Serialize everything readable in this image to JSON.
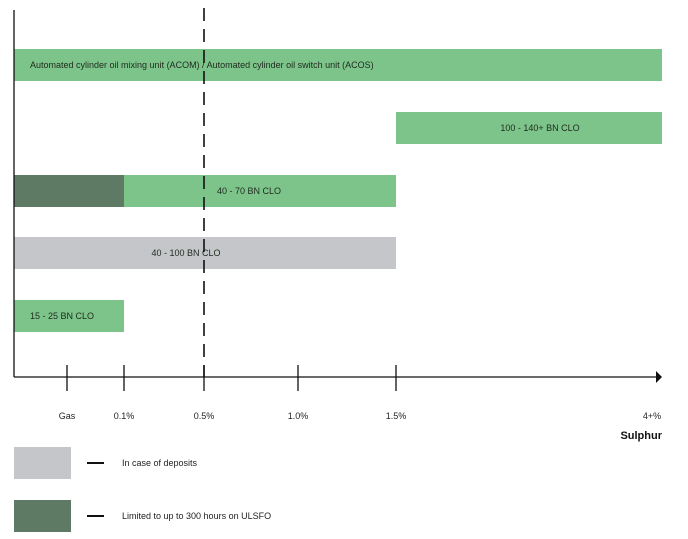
{
  "chart_data": {
    "type": "bar",
    "orientation": "horizontal",
    "x_axis": {
      "title": "Sulphur",
      "ticks": [
        {
          "label": "Gas",
          "value": "Gas"
        },
        {
          "label": "0.1%",
          "value": 0.1
        },
        {
          "label": "0.5%",
          "value": 0.5
        },
        {
          "label": "1.0%",
          "value": 1.0
        },
        {
          "label": "1.5%",
          "value": 1.5
        },
        {
          "label": "4+%",
          "value": 4
        }
      ]
    },
    "reference_line": {
      "value": 0.5,
      "style": "dashed"
    },
    "bars": [
      {
        "label": "Automated cylinder oil mixing unit (ACOM) / Automated cylinder oil switch unit (ACOS)",
        "start": "Gas",
        "end": 4,
        "color": "#7dc48a"
      },
      {
        "label": "100 - 140+ BN CLO",
        "start": 1.5,
        "end": 4,
        "color": "#7dc48a"
      },
      {
        "label": "40 - 70 BN CLO",
        "start": "Gas",
        "end": 1.5,
        "color": "#7dc48a",
        "restricted_segment": {
          "start": "Gas",
          "end": 0.1,
          "color": "#5f7a64"
        }
      },
      {
        "label": "40 - 100 BN CLO",
        "start": "Gas",
        "end": 1.5,
        "color": "#c5c6c9"
      },
      {
        "label": "15 - 25 BN CLO",
        "start": "Gas",
        "end": 0.1,
        "color": "#7dc48a"
      }
    ]
  },
  "legend": [
    {
      "label": "In case of deposits",
      "color": "#c5c6c9"
    },
    {
      "label": "Limited to up to 300 hours on ULSFO",
      "color": "#5f7a64"
    }
  ]
}
